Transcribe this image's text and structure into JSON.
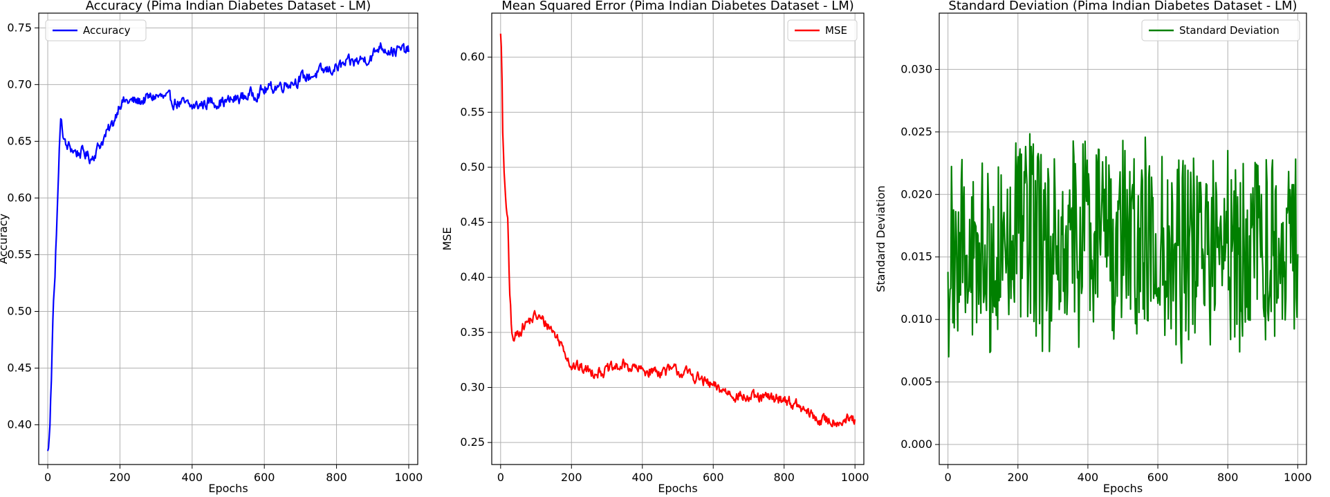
{
  "chart_data": [
    {
      "type": "line",
      "title": "Accuracy (Pima Indian Diabetes Dataset - LM)",
      "xlabel": "Epochs",
      "ylabel": "Accuracy",
      "xlim": [
        -25,
        1025
      ],
      "ylim": [
        0.365,
        0.763
      ],
      "xticks": [
        0,
        200,
        400,
        600,
        800,
        1000
      ],
      "yticks": [
        "0.40",
        "0.45",
        "0.50",
        "0.55",
        "0.60",
        "0.65",
        "0.70",
        "0.75"
      ],
      "grid": true,
      "legend_position": "upper-left",
      "color": "#0000ff",
      "series": [
        {
          "name": "Accuracy",
          "x": [
            0,
            5,
            10,
            15,
            20,
            25,
            30,
            35,
            40,
            50,
            60,
            80,
            100,
            120,
            140,
            160,
            180,
            200,
            250,
            300,
            350,
            400,
            450,
            500,
            550,
            600,
            650,
            700,
            750,
            800,
            850,
            900,
            920,
            950,
            980,
            1000
          ],
          "y": [
            0.375,
            0.39,
            0.44,
            0.51,
            0.53,
            0.58,
            0.62,
            0.67,
            0.66,
            0.645,
            0.645,
            0.64,
            0.64,
            0.635,
            0.645,
            0.655,
            0.665,
            0.685,
            0.685,
            0.69,
            0.685,
            0.68,
            0.685,
            0.685,
            0.69,
            0.695,
            0.7,
            0.705,
            0.71,
            0.715,
            0.72,
            0.725,
            0.735,
            0.73,
            0.73,
            0.73
          ],
          "noise": 0.01,
          "color": "#0000ff"
        }
      ]
    },
    {
      "type": "line",
      "title": "Mean Squared Error (Pima Indian Diabetes Dataset - LM)",
      "xlabel": "Epochs",
      "ylabel": "MSE",
      "xlim": [
        -25,
        1025
      ],
      "ylim": [
        0.23,
        0.64
      ],
      "xticks": [
        0,
        200,
        400,
        600,
        800,
        1000
      ],
      "yticks": [
        "0.25",
        "0.30",
        "0.35",
        "0.40",
        "0.45",
        "0.50",
        "0.55",
        "0.60"
      ],
      "grid": true,
      "legend_position": "upper-right",
      "color": "#ff0000",
      "series": [
        {
          "name": "MSE",
          "x": [
            0,
            3,
            6,
            10,
            15,
            20,
            25,
            30,
            35,
            40,
            50,
            60,
            80,
            100,
            120,
            140,
            160,
            180,
            200,
            250,
            300,
            350,
            400,
            450,
            500,
            550,
            600,
            650,
            700,
            750,
            800,
            850,
            900,
            950,
            1000
          ],
          "y": [
            0.625,
            0.6,
            0.53,
            0.49,
            0.47,
            0.45,
            0.39,
            0.36,
            0.34,
            0.345,
            0.35,
            0.355,
            0.36,
            0.365,
            0.36,
            0.355,
            0.345,
            0.335,
            0.32,
            0.315,
            0.315,
            0.32,
            0.315,
            0.315,
            0.315,
            0.31,
            0.3,
            0.295,
            0.29,
            0.29,
            0.29,
            0.28,
            0.27,
            0.27,
            0.27
          ],
          "noise": 0.01,
          "color": "#ff0000"
        }
      ]
    },
    {
      "type": "line",
      "title": "Standard Deviation (Pima Indian Diabetes Dataset - LM)",
      "xlabel": "Epochs",
      "ylabel": "Standard Deviation",
      "xlim": [
        -25,
        1025
      ],
      "ylim": [
        -0.0016,
        0.0345
      ],
      "xticks": [
        0,
        200,
        400,
        600,
        800,
        1000
      ],
      "yticks": [
        "0.000",
        "0.005",
        "0.010",
        "0.015",
        "0.020",
        "0.025",
        "0.030"
      ],
      "grid": true,
      "legend_position": "upper-right",
      "color": "#008000",
      "series": [
        {
          "name": "Standard Deviation",
          "x": [
            0,
            100,
            200,
            300,
            400,
            500,
            600,
            700,
            800,
            900,
            1000
          ],
          "y": [
            0.014,
            0.016,
            0.016,
            0.016,
            0.017,
            0.017,
            0.016,
            0.015,
            0.016,
            0.016,
            0.016
          ],
          "noise": 0.0075,
          "color": "#008000"
        }
      ]
    }
  ]
}
